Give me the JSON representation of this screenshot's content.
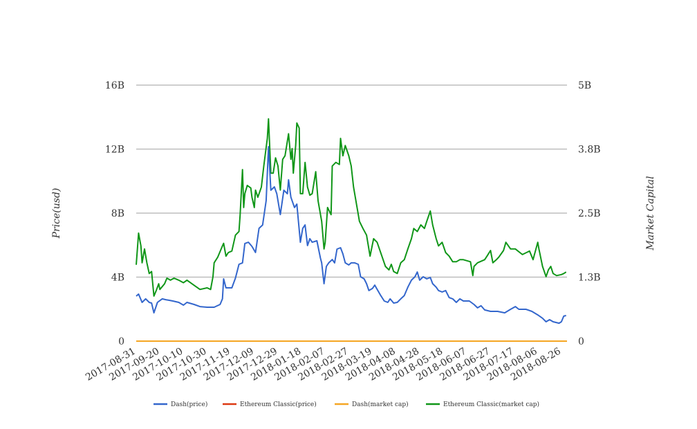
{
  "chart_data": {
    "type": "line",
    "title": "",
    "xlabel": "",
    "ylabel_left": "Price(usd)",
    "ylabel_right": "Market Capital",
    "x_start_date": "2017-08-31",
    "x_unit": "days since 2017-08-31",
    "x_ticks": [
      "2017-08-31",
      "2017-09-20",
      "2017-10-10",
      "2017-10-30",
      "2017-11-19",
      "2017-12-09",
      "2017-12-29",
      "2018-01-18",
      "2018-02-07",
      "2018-02-27",
      "2018-03-19",
      "2018-04-08",
      "2018-04-28",
      "2018-05-18",
      "2018-06-07",
      "2018-06-27",
      "2018-07-17",
      "2018-08-06",
      "2018-08-26"
    ],
    "x_range": [
      0,
      365
    ],
    "ylim_left": [
      0,
      16
    ],
    "ylim_right": [
      0,
      5
    ],
    "y_ticks_left": [
      {
        "v": 0,
        "label": "0"
      },
      {
        "v": 4,
        "label": "4B"
      },
      {
        "v": 8,
        "label": "8B"
      },
      {
        "v": 12,
        "label": "12B"
      },
      {
        "v": 16,
        "label": "16B"
      }
    ],
    "y_ticks_right": [
      {
        "v": 0,
        "label": "0"
      },
      {
        "v": 1.25,
        "label": "1.3B"
      },
      {
        "v": 2.5,
        "label": "2.5B"
      },
      {
        "v": 3.75,
        "label": "3.8B"
      },
      {
        "v": 5,
        "label": "5B"
      }
    ],
    "grid": true,
    "legend_position": "bottom",
    "series": [
      {
        "name": "Dash(price)",
        "color": "#3366cc",
        "axis": "left",
        "points": [
          [
            0,
            2.81
          ],
          [
            2,
            2.94
          ],
          [
            5,
            2.42
          ],
          [
            8,
            2.64
          ],
          [
            11,
            2.42
          ],
          [
            13,
            2.38
          ],
          [
            15,
            1.77
          ],
          [
            18,
            2.42
          ],
          [
            22,
            2.64
          ],
          [
            25,
            2.59
          ],
          [
            28,
            2.55
          ],
          [
            31,
            2.51
          ],
          [
            36,
            2.42
          ],
          [
            40,
            2.25
          ],
          [
            43,
            2.42
          ],
          [
            49,
            2.29
          ],
          [
            54,
            2.16
          ],
          [
            60,
            2.12
          ],
          [
            66,
            2.12
          ],
          [
            71,
            2.29
          ],
          [
            73,
            2.64
          ],
          [
            74,
            3.89
          ],
          [
            76,
            3.33
          ],
          [
            81,
            3.33
          ],
          [
            84,
            3.94
          ],
          [
            87,
            4.8
          ],
          [
            90,
            4.89
          ],
          [
            92,
            6.1
          ],
          [
            95,
            6.18
          ],
          [
            98,
            5.92
          ],
          [
            101,
            5.54
          ],
          [
            104,
            7.05
          ],
          [
            107,
            7.26
          ],
          [
            110,
            8.78
          ],
          [
            112,
            12.15
          ],
          [
            114,
            9.43
          ],
          [
            117,
            9.64
          ],
          [
            119,
            9.21
          ],
          [
            122,
            7.91
          ],
          [
            125,
            9.43
          ],
          [
            128,
            9.21
          ],
          [
            129,
            10.08
          ],
          [
            131,
            8.99
          ],
          [
            134,
            8.35
          ],
          [
            136,
            8.56
          ],
          [
            139,
            6.18
          ],
          [
            141,
            7.05
          ],
          [
            143,
            7.26
          ],
          [
            145,
            5.97
          ],
          [
            147,
            6.4
          ],
          [
            149,
            6.18
          ],
          [
            153,
            6.27
          ],
          [
            156,
            5.19
          ],
          [
            157,
            4.89
          ],
          [
            159,
            3.59
          ],
          [
            161,
            4.67
          ],
          [
            163,
            4.89
          ],
          [
            166,
            5.1
          ],
          [
            168,
            4.89
          ],
          [
            170,
            5.75
          ],
          [
            173,
            5.84
          ],
          [
            175,
            5.45
          ],
          [
            177,
            4.89
          ],
          [
            180,
            4.76
          ],
          [
            182,
            4.89
          ],
          [
            185,
            4.89
          ],
          [
            188,
            4.8
          ],
          [
            190,
            4.02
          ],
          [
            193,
            3.89
          ],
          [
            195,
            3.59
          ],
          [
            197,
            3.16
          ],
          [
            200,
            3.29
          ],
          [
            202,
            3.5
          ],
          [
            204,
            3.24
          ],
          [
            207,
            2.85
          ],
          [
            210,
            2.51
          ],
          [
            213,
            2.42
          ],
          [
            215,
            2.64
          ],
          [
            218,
            2.38
          ],
          [
            221,
            2.42
          ],
          [
            224,
            2.64
          ],
          [
            227,
            2.85
          ],
          [
            230,
            3.37
          ],
          [
            233,
            3.81
          ],
          [
            236,
            4.02
          ],
          [
            238,
            4.32
          ],
          [
            240,
            3.81
          ],
          [
            243,
            4.02
          ],
          [
            246,
            3.89
          ],
          [
            249,
            3.98
          ],
          [
            251,
            3.59
          ],
          [
            254,
            3.37
          ],
          [
            256,
            3.16
          ],
          [
            259,
            3.07
          ],
          [
            262,
            3.16
          ],
          [
            265,
            2.72
          ],
          [
            268,
            2.64
          ],
          [
            271,
            2.42
          ],
          [
            274,
            2.64
          ],
          [
            277,
            2.51
          ],
          [
            282,
            2.51
          ],
          [
            286,
            2.29
          ],
          [
            289,
            2.08
          ],
          [
            292,
            2.21
          ],
          [
            295,
            1.95
          ],
          [
            300,
            1.86
          ],
          [
            306,
            1.86
          ],
          [
            312,
            1.77
          ],
          [
            317,
            1.99
          ],
          [
            321,
            2.16
          ],
          [
            324,
            1.99
          ],
          [
            330,
            1.99
          ],
          [
            335,
            1.86
          ],
          [
            340,
            1.64
          ],
          [
            344,
            1.43
          ],
          [
            347,
            1.21
          ],
          [
            350,
            1.34
          ],
          [
            353,
            1.21
          ],
          [
            358,
            1.12
          ],
          [
            360,
            1.21
          ],
          [
            362,
            1.56
          ],
          [
            364,
            1.6
          ]
        ]
      },
      {
        "name": "Ethereum Classic(price)",
        "color": "#dc3912",
        "axis": "left",
        "points": [
          [
            0,
            0
          ],
          [
            364,
            0
          ]
        ]
      },
      {
        "name": "Dash(market cap)",
        "color": "#f5a623",
        "axis": "right",
        "points": [
          [
            0,
            0
          ],
          [
            364,
            0
          ]
        ]
      },
      {
        "name": "Ethereum Classic(market cap)",
        "color": "#109618",
        "axis": "right",
        "points": [
          [
            0,
            1.49
          ],
          [
            2,
            2.11
          ],
          [
            4,
            1.86
          ],
          [
            5,
            1.53
          ],
          [
            7,
            1.8
          ],
          [
            9,
            1.53
          ],
          [
            11,
            1.32
          ],
          [
            13,
            1.36
          ],
          [
            15,
            0.88
          ],
          [
            17,
            0.99
          ],
          [
            19,
            1.12
          ],
          [
            20,
            1.01
          ],
          [
            24,
            1.12
          ],
          [
            26,
            1.23
          ],
          [
            29,
            1.19
          ],
          [
            32,
            1.23
          ],
          [
            36,
            1.19
          ],
          [
            40,
            1.14
          ],
          [
            43,
            1.19
          ],
          [
            49,
            1.09
          ],
          [
            54,
            1.01
          ],
          [
            60,
            1.04
          ],
          [
            63,
            1.01
          ],
          [
            65,
            1.26
          ],
          [
            66,
            1.53
          ],
          [
            69,
            1.64
          ],
          [
            73,
            1.86
          ],
          [
            74,
            1.91
          ],
          [
            76,
            1.66
          ],
          [
            78,
            1.73
          ],
          [
            81,
            1.76
          ],
          [
            84,
            2.07
          ],
          [
            87,
            2.14
          ],
          [
            88,
            2.47
          ],
          [
            90,
            3.35
          ],
          [
            91,
            2.61
          ],
          [
            92,
            2.88
          ],
          [
            94,
            3.04
          ],
          [
            97,
            2.99
          ],
          [
            98,
            2.81
          ],
          [
            100,
            2.61
          ],
          [
            101,
            2.95
          ],
          [
            103,
            2.81
          ],
          [
            106,
            3.01
          ],
          [
            108,
            3.42
          ],
          [
            111,
            3.96
          ],
          [
            112,
            4.34
          ],
          [
            114,
            3.28
          ],
          [
            116,
            3.28
          ],
          [
            118,
            3.58
          ],
          [
            120,
            3.42
          ],
          [
            122,
            2.95
          ],
          [
            124,
            3.55
          ],
          [
            126,
            3.62
          ],
          [
            129,
            4.05
          ],
          [
            131,
            3.55
          ],
          [
            132,
            3.76
          ],
          [
            133,
            3.28
          ],
          [
            135,
            3.82
          ],
          [
            136,
            4.26
          ],
          [
            138,
            4.16
          ],
          [
            139,
            2.88
          ],
          [
            141,
            2.88
          ],
          [
            143,
            3.49
          ],
          [
            145,
            3.01
          ],
          [
            147,
            2.85
          ],
          [
            149,
            2.88
          ],
          [
            152,
            3.31
          ],
          [
            154,
            2.74
          ],
          [
            157,
            2.34
          ],
          [
            159,
            1.8
          ],
          [
            160,
            1.93
          ],
          [
            162,
            2.61
          ],
          [
            165,
            2.47
          ],
          [
            166,
            3.42
          ],
          [
            169,
            3.49
          ],
          [
            172,
            3.45
          ],
          [
            173,
            3.96
          ],
          [
            175,
            3.62
          ],
          [
            177,
            3.82
          ],
          [
            180,
            3.62
          ],
          [
            182,
            3.42
          ],
          [
            184,
            3.01
          ],
          [
            187,
            2.61
          ],
          [
            189,
            2.34
          ],
          [
            192,
            2.2
          ],
          [
            195,
            2.07
          ],
          [
            198,
            1.66
          ],
          [
            201,
            2.0
          ],
          [
            204,
            1.93
          ],
          [
            208,
            1.66
          ],
          [
            211,
            1.46
          ],
          [
            214,
            1.39
          ],
          [
            216,
            1.5
          ],
          [
            218,
            1.36
          ],
          [
            221,
            1.32
          ],
          [
            224,
            1.53
          ],
          [
            227,
            1.59
          ],
          [
            230,
            1.8
          ],
          [
            233,
            2.0
          ],
          [
            235,
            2.2
          ],
          [
            238,
            2.14
          ],
          [
            241,
            2.27
          ],
          [
            244,
            2.2
          ],
          [
            246,
            2.34
          ],
          [
            249,
            2.54
          ],
          [
            251,
            2.27
          ],
          [
            254,
            2.0
          ],
          [
            256,
            1.86
          ],
          [
            259,
            1.93
          ],
          [
            262,
            1.73
          ],
          [
            265,
            1.66
          ],
          [
            268,
            1.55
          ],
          [
            271,
            1.55
          ],
          [
            274,
            1.59
          ],
          [
            277,
            1.59
          ],
          [
            283,
            1.55
          ],
          [
            285,
            1.28
          ],
          [
            286,
            1.46
          ],
          [
            289,
            1.53
          ],
          [
            295,
            1.59
          ],
          [
            297,
            1.66
          ],
          [
            300,
            1.77
          ],
          [
            302,
            1.53
          ],
          [
            305,
            1.59
          ],
          [
            307,
            1.64
          ],
          [
            311,
            1.77
          ],
          [
            313,
            1.93
          ],
          [
            317,
            1.8
          ],
          [
            321,
            1.8
          ],
          [
            327,
            1.69
          ],
          [
            333,
            1.76
          ],
          [
            336,
            1.59
          ],
          [
            340,
            1.93
          ],
          [
            341,
            1.8
          ],
          [
            344,
            1.46
          ],
          [
            347,
            1.26
          ],
          [
            349,
            1.39
          ],
          [
            351,
            1.46
          ],
          [
            353,
            1.32
          ],
          [
            356,
            1.28
          ],
          [
            360,
            1.3
          ],
          [
            362,
            1.32
          ],
          [
            364,
            1.35
          ]
        ]
      }
    ]
  }
}
